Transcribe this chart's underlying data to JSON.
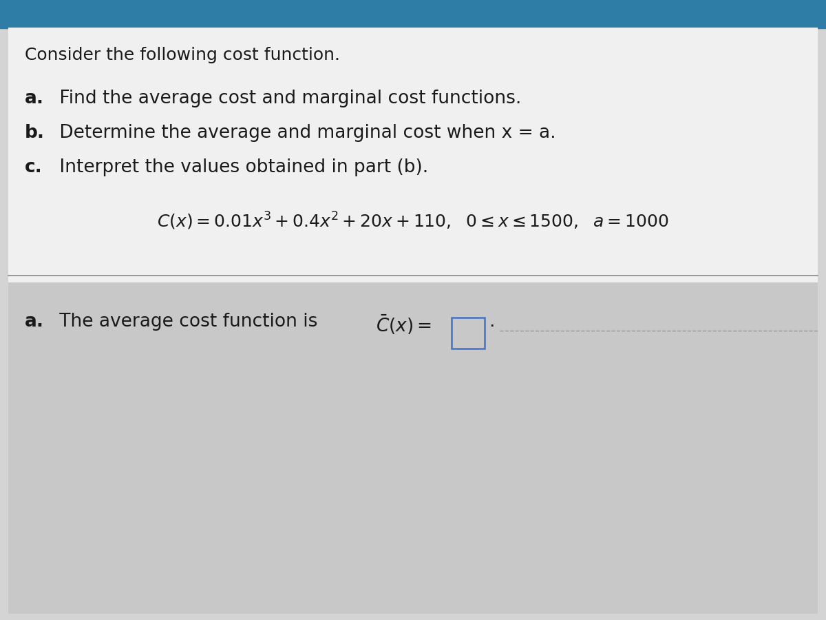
{
  "bg_top_color": "#2e7da6",
  "bg_main_color": "#d4d4d4",
  "text_color": "#1a1a1a",
  "line_color": "#888888",
  "box_border_color": "#4472c4",
  "title": "Consider the following cost function.",
  "items": [
    {
      "bold_part": "a.",
      "text": " Find the average cost and marginal cost functions."
    },
    {
      "bold_part": "b.",
      "text": " Determine the average and marginal cost when x = a."
    },
    {
      "bold_part": "c.",
      "text": " Interpret the values obtained in part (b)."
    }
  ],
  "fontsize_title": 18,
  "fontsize_items": 19,
  "fontsize_formula": 18,
  "fontsize_answer": 19
}
